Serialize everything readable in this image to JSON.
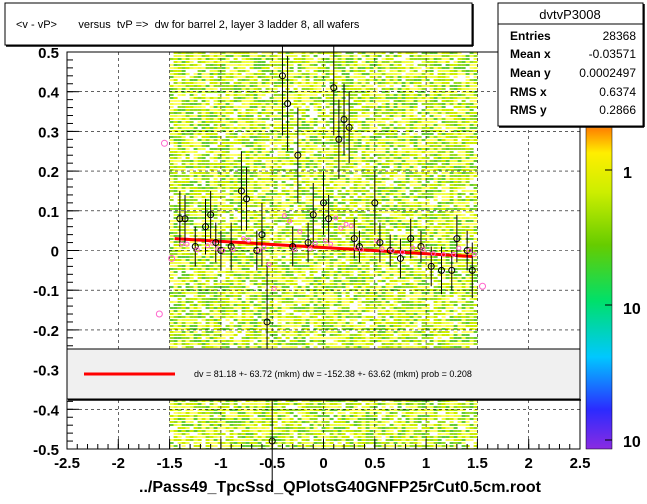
{
  "chart_data": {
    "type": "scatter",
    "title": "<v - vP>       versus  tvP =>  dw for barrel 2, layer 3 ladder 8, all wafers",
    "xlabel": "../Pass49_TpcSsd_QPlotsG40GNFP25rCut0.5cm.root",
    "ylabel": "",
    "xlim": [
      -2.5,
      2.5
    ],
    "ylim": [
      -0.5,
      0.5
    ],
    "x_ticks": [
      "-2.5",
      "-2",
      "-1.5",
      "-1",
      "-0.5",
      "0",
      "0.5",
      "1",
      "1.5",
      "2",
      "2.5"
    ],
    "y_ticks": [
      "-0.5",
      "-0.4",
      "-0.3",
      "-0.2",
      "-0.1",
      "0",
      "0.1",
      "0.2",
      "0.3",
      "0.4",
      "0.5"
    ],
    "grid": true,
    "stats_box": {
      "name": "dvtvP3008",
      "rows": [
        {
          "label": "Entries",
          "value": "28368"
        },
        {
          "label": "Mean x",
          "value": "-0.03571"
        },
        {
          "label": "Mean y",
          "value": "0.0002497"
        },
        {
          "label": "RMS x",
          "value": "0.6374"
        },
        {
          "label": "RMS y",
          "value": "0.2866"
        }
      ]
    },
    "colorbar_ticks": [
      "1",
      "10",
      "10"
    ],
    "fit_legend": "dv =   81.18 +- 63.72 (mkm) dw = -152.38 +- 63.62 (mkm) prob = 0.208",
    "fit_line": {
      "x": [
        -1.45,
        1.45
      ],
      "y": [
        0.03,
        -0.015
      ],
      "color": "#ff0000"
    },
    "heatmap_x_range": [
      -1.5,
      1.5
    ],
    "profile_points": [
      {
        "x": -1.4,
        "y": 0.08,
        "err": 0.07
      },
      {
        "x": -1.35,
        "y": 0.08,
        "err": 0.06
      },
      {
        "x": -1.25,
        "y": 0.01,
        "err": 0.05
      },
      {
        "x": -1.15,
        "y": 0.06,
        "err": 0.07
      },
      {
        "x": -1.1,
        "y": 0.09,
        "err": 0.06
      },
      {
        "x": -1.05,
        "y": 0.02,
        "err": 0.05
      },
      {
        "x": -1.0,
        "y": 0.0,
        "err": 0.05
      },
      {
        "x": -0.9,
        "y": 0.01,
        "err": 0.06
      },
      {
        "x": -0.8,
        "y": 0.15,
        "err": 0.1
      },
      {
        "x": -0.75,
        "y": 0.13,
        "err": 0.08
      },
      {
        "x": -0.65,
        "y": 0.0,
        "err": 0.05
      },
      {
        "x": -0.6,
        "y": 0.04,
        "err": 0.08
      },
      {
        "x": -0.55,
        "y": -0.18,
        "err": 0.15
      },
      {
        "x": -0.5,
        "y": -0.48,
        "err": 0.1
      },
      {
        "x": -0.4,
        "y": 0.44,
        "err": 0.15
      },
      {
        "x": -0.35,
        "y": 0.37,
        "err": 0.12
      },
      {
        "x": -0.3,
        "y": 0.01,
        "err": 0.05
      },
      {
        "x": -0.25,
        "y": 0.24,
        "err": 0.12
      },
      {
        "x": -0.15,
        "y": 0.02,
        "err": 0.05
      },
      {
        "x": -0.1,
        "y": 0.09,
        "err": 0.08
      },
      {
        "x": 0.0,
        "y": 0.12,
        "err": 0.08
      },
      {
        "x": 0.05,
        "y": 0.08,
        "err": 0.06
      },
      {
        "x": 0.1,
        "y": 0.41,
        "err": 0.12
      },
      {
        "x": 0.15,
        "y": 0.28,
        "err": 0.1
      },
      {
        "x": 0.2,
        "y": 0.33,
        "err": 0.09
      },
      {
        "x": 0.25,
        "y": 0.31,
        "err": 0.09
      },
      {
        "x": 0.3,
        "y": 0.03,
        "err": 0.05
      },
      {
        "x": 0.35,
        "y": 0.01,
        "err": 0.04
      },
      {
        "x": 0.5,
        "y": 0.12,
        "err": 0.08
      },
      {
        "x": 0.55,
        "y": 0.02,
        "err": 0.05
      },
      {
        "x": 0.65,
        "y": 0.0,
        "err": 0.04
      },
      {
        "x": 0.75,
        "y": -0.02,
        "err": 0.05
      },
      {
        "x": 0.85,
        "y": 0.03,
        "err": 0.05
      },
      {
        "x": 0.95,
        "y": 0.01,
        "err": 0.04
      },
      {
        "x": 1.05,
        "y": -0.04,
        "err": 0.05
      },
      {
        "x": 1.15,
        "y": -0.05,
        "err": 0.06
      },
      {
        "x": 1.25,
        "y": -0.05,
        "err": 0.05
      },
      {
        "x": 1.3,
        "y": 0.03,
        "err": 0.06
      },
      {
        "x": 1.4,
        "y": 0.0,
        "err": 0.05
      },
      {
        "x": 1.45,
        "y": -0.05,
        "err": 0.07
      }
    ],
    "side_points": [
      {
        "x": -1.55,
        "y": 0.27
      },
      {
        "x": -1.6,
        "y": -0.16
      },
      {
        "x": -1.48,
        "y": -0.02
      },
      {
        "x": 1.55,
        "y": -0.09
      }
    ],
    "colors": {
      "frame": "#000000",
      "heat_low": "#66cc33",
      "heat_mid": "#ccee00",
      "heat_high": "#ffff66",
      "fit": "#ff0000",
      "point_open": "#ff66cc"
    }
  }
}
